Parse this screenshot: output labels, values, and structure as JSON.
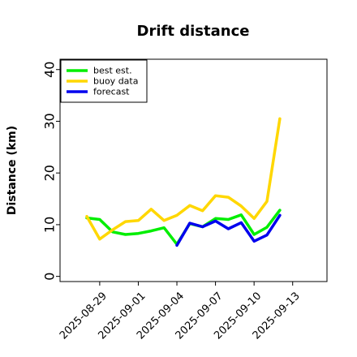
{
  "chart_data": {
    "type": "line",
    "title": "Drift distance",
    "xlabel": "",
    "ylabel": "Distance (km)",
    "ylim": [
      -1,
      42
    ],
    "xlim": [
      "2025-08-25T22:00",
      "2025-09-15T16:00"
    ],
    "yticks": [
      "0",
      "10",
      "20",
      "30",
      "40"
    ],
    "xticks": [
      {
        "label": "2025-08-29",
        "color": "#000000"
      },
      {
        "label": "2025-09-01",
        "color": "#000000"
      },
      {
        "label": "2025-09-04",
        "color": "#228b22"
      },
      {
        "label": "2025-09-07",
        "color": "#000000"
      },
      {
        "label": "2025-09-10",
        "color": "#000000"
      },
      {
        "label": "2025-09-13",
        "color": "#000000"
      }
    ],
    "legend_position": "top-left",
    "grid": false,
    "series": [
      {
        "name": "best est.",
        "color": "#00ee00",
        "points": [
          {
            "x": "2025-08-28",
            "y": 11.3
          },
          {
            "x": "2025-08-29",
            "y": 11.0
          },
          {
            "x": "2025-08-30",
            "y": 8.6
          },
          {
            "x": "2025-08-31",
            "y": 8.1
          },
          {
            "x": "2025-09-01",
            "y": 8.3
          },
          {
            "x": "2025-09-02",
            "y": 8.8
          },
          {
            "x": "2025-09-03",
            "y": 9.4
          },
          {
            "x": "2025-09-04",
            "y": 6.2
          },
          {
            "x": "2025-09-05",
            "y": 10.2
          },
          {
            "x": "2025-09-06",
            "y": 9.6
          },
          {
            "x": "2025-09-07",
            "y": 11.2
          },
          {
            "x": "2025-09-08",
            "y": 11.0
          },
          {
            "x": "2025-09-09",
            "y": 11.9
          },
          {
            "x": "2025-09-10",
            "y": 8.1
          },
          {
            "x": "2025-09-11",
            "y": 9.5
          },
          {
            "x": "2025-09-12",
            "y": 12.8
          }
        ]
      },
      {
        "name": "buoy data",
        "color": "#ffd700",
        "points": [
          {
            "x": "2025-08-28",
            "y": 11.6
          },
          {
            "x": "2025-08-29",
            "y": 7.2
          },
          {
            "x": "2025-08-30",
            "y": 9.0
          },
          {
            "x": "2025-08-31",
            "y": 10.6
          },
          {
            "x": "2025-09-01",
            "y": 10.8
          },
          {
            "x": "2025-09-02",
            "y": 13.0
          },
          {
            "x": "2025-09-03",
            "y": 10.8
          },
          {
            "x": "2025-09-04",
            "y": 11.8
          },
          {
            "x": "2025-09-05",
            "y": 13.7
          },
          {
            "x": "2025-09-06",
            "y": 12.7
          },
          {
            "x": "2025-09-07",
            "y": 15.6
          },
          {
            "x": "2025-09-08",
            "y": 15.3
          },
          {
            "x": "2025-09-09",
            "y": 13.6
          },
          {
            "x": "2025-09-10",
            "y": 11.2
          },
          {
            "x": "2025-09-11",
            "y": 14.5
          },
          {
            "x": "2025-09-12",
            "y": 30.5
          }
        ]
      },
      {
        "name": "forecast",
        "color": "#0000ee",
        "points": [
          {
            "x": "2025-09-04",
            "y": 6.0
          },
          {
            "x": "2025-09-05",
            "y": 10.3
          },
          {
            "x": "2025-09-06",
            "y": 9.6
          },
          {
            "x": "2025-09-07",
            "y": 10.7
          },
          {
            "x": "2025-09-08",
            "y": 9.2
          },
          {
            "x": "2025-09-09",
            "y": 10.4
          },
          {
            "x": "2025-09-10",
            "y": 6.8
          },
          {
            "x": "2025-09-11",
            "y": 8.0
          },
          {
            "x": "2025-09-12",
            "y": 11.8
          }
        ]
      }
    ]
  }
}
